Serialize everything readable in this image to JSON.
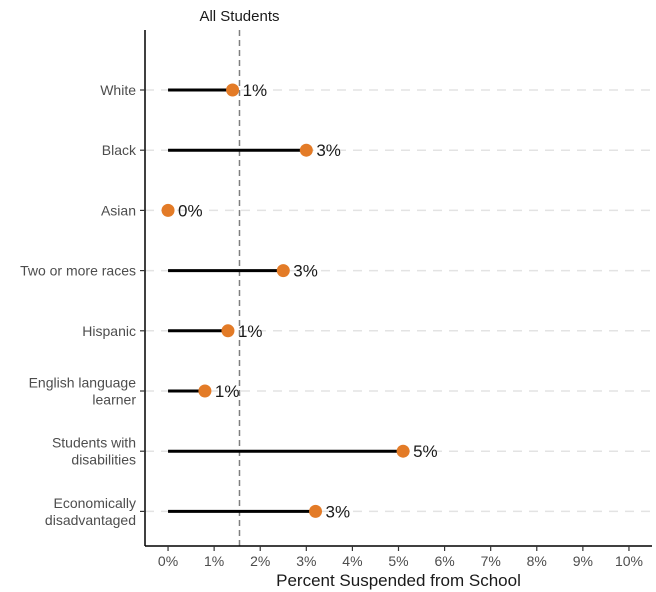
{
  "chart_data": {
    "type": "lollipop",
    "categories": [
      [
        "White"
      ],
      [
        "Black"
      ],
      [
        "Asian"
      ],
      [
        "Two or more races"
      ],
      [
        "Hispanic"
      ],
      [
        "English language",
        "learner"
      ],
      [
        "Students with",
        "disabilities"
      ],
      [
        "Economically",
        "disadvantaged"
      ]
    ],
    "values": [
      1.4,
      3.0,
      0.0,
      2.5,
      1.3,
      0.8,
      5.1,
      3.2
    ],
    "value_labels": [
      "1%",
      "3%",
      "0%",
      "3%",
      "1%",
      "1%",
      "5%",
      "3%"
    ],
    "xlabel": "Percent Suspended from School",
    "xlim": [
      -0.5,
      10.5
    ],
    "xticks": [
      0,
      1,
      2,
      3,
      4,
      5,
      6,
      7,
      8,
      9,
      10
    ],
    "xtick_labels": [
      "0%",
      "1%",
      "2%",
      "3%",
      "4%",
      "5%",
      "6%",
      "7%",
      "8%",
      "9%",
      "10%"
    ],
    "reference_line": {
      "label": "All Students",
      "value": 1.55
    },
    "horizontal_grid": "dashed",
    "colors": {
      "point": "#E37B27",
      "stem": "#000000",
      "reference": "#7f7f7f",
      "grid": "#e3e3e3"
    }
  }
}
